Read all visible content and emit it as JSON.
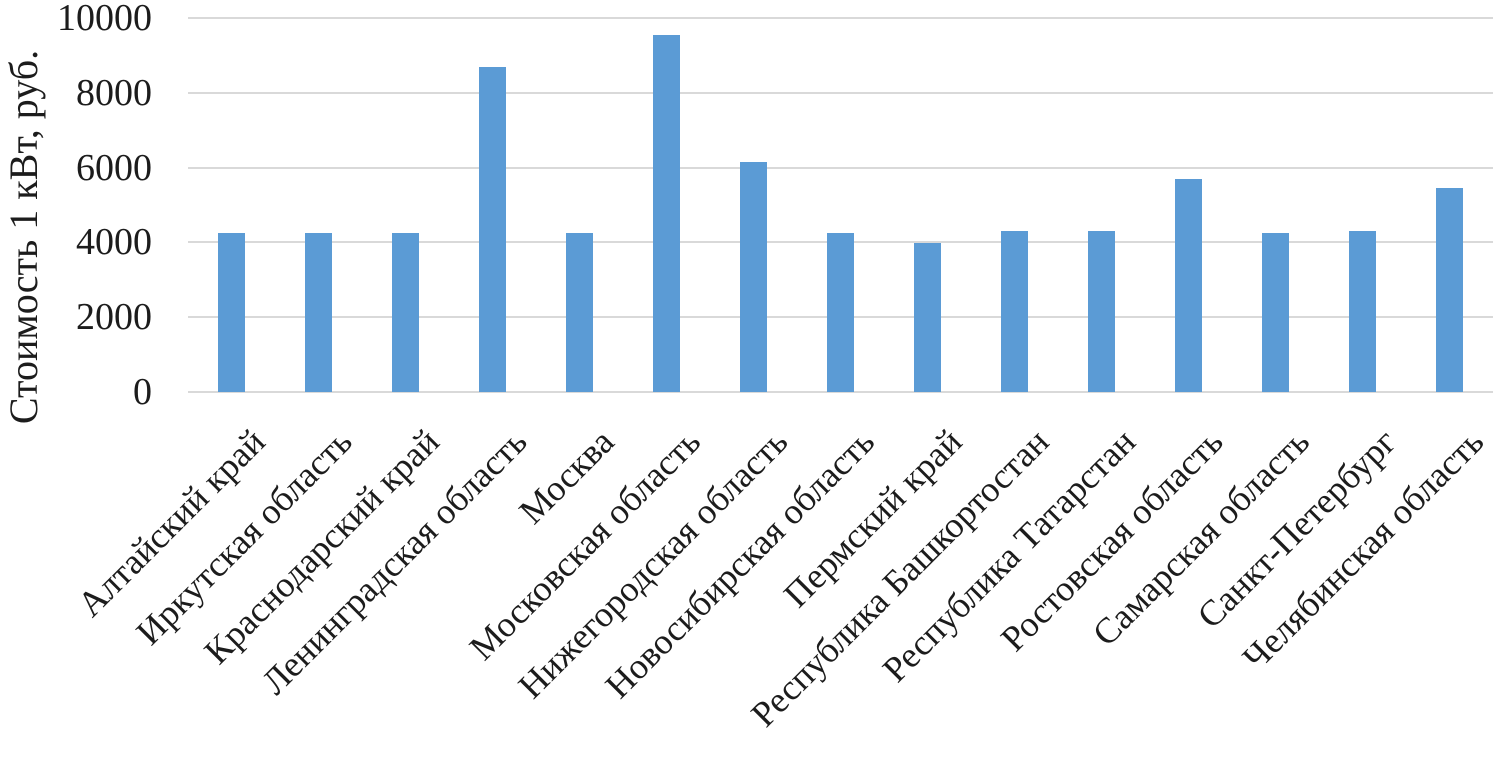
{
  "chart_data": {
    "type": "bar",
    "title": "",
    "xlabel": "",
    "ylabel": "Стоимость 1 кВт, руб.",
    "categories": [
      "Алтайский край",
      "Иркутская область",
      "Краснодарский край",
      "Ленинградская область",
      "Москва",
      "Московская область",
      "Нижегородская область",
      "Новосибирская область",
      "Пермский край",
      "Республика Башкортостан",
      "Республика Татарстан",
      "Ростовская область",
      "Самарская область",
      "Санкт-Петербург",
      "Челябинская область"
    ],
    "values": [
      4250,
      4250,
      4250,
      8700,
      4250,
      9550,
      6150,
      4250,
      3975,
      4300,
      4300,
      5700,
      4250,
      4300,
      5450
    ],
    "ylim": [
      0,
      10000
    ],
    "yticks": [
      0,
      2000,
      4000,
      6000,
      8000,
      10000
    ],
    "grid": "horizontal",
    "legend": "none",
    "bar_color": "#5b9bd5",
    "gridline_color": "#d9d9d9",
    "text_color": "#1c1c1c"
  }
}
